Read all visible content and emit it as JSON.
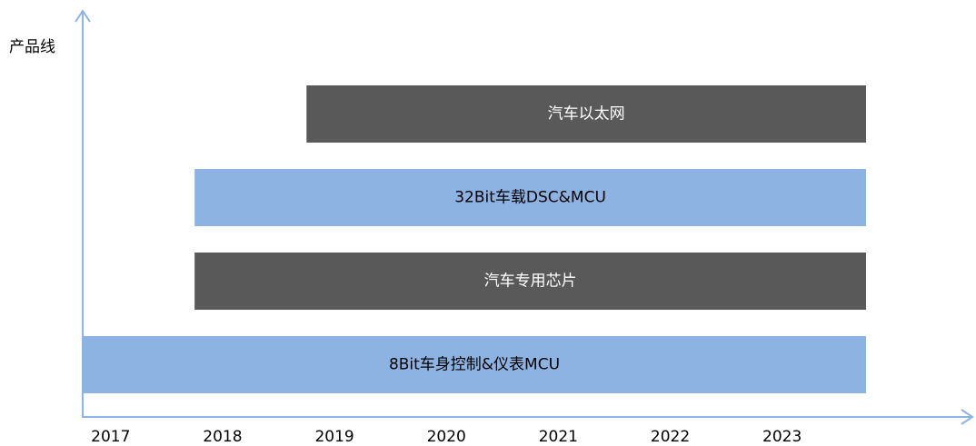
{
  "chart_data": {
    "type": "timeline",
    "ylabel": "产品线",
    "categories": [
      "汽车以太网",
      "32Bit车载DSC&MCU",
      "汽车专用芯片",
      "8Bit车身控制&仪表MCU"
    ],
    "start": [
      2018.75,
      2017.75,
      2017.75,
      2016.75
    ],
    "end": [
      2023.75,
      2023.75,
      2023.75,
      2023.75
    ],
    "colors": [
      "#595959",
      "#8db3e2",
      "#595959",
      "#8db3e2"
    ],
    "xlim": [
      2016.75,
      2024.7
    ],
    "xticks": [
      2017,
      2018,
      2019,
      2020,
      2021,
      2022,
      2023
    ]
  }
}
